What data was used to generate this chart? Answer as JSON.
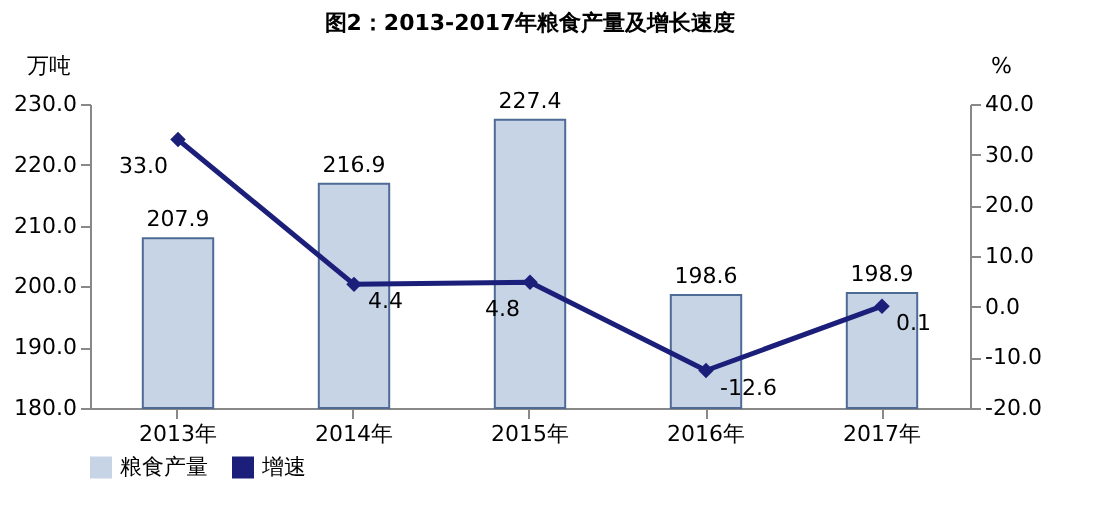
{
  "chart_data": {
    "type": "bar",
    "title": "图2：2013-2017年粮食产量及增长速度",
    "ylabel": "万吨",
    "y2label": "%",
    "categories": [
      "2013年",
      "2014年",
      "2015年",
      "2016年",
      "2017年"
    ],
    "series": [
      {
        "name": "粮食产量",
        "color": "#c6d4e6",
        "values": [
          207.9,
          216.9,
          227.4,
          198.6,
          198.9
        ],
        "value_labels": [
          "207.9",
          "216.9",
          "227.4",
          "198.6",
          "198.9"
        ]
      },
      {
        "name": "增速",
        "type": "line",
        "axis": "y2",
        "color": "#1b1f7a",
        "values": [
          33.0,
          4.4,
          4.8,
          -12.6,
          0.1
        ],
        "value_labels": [
          "33.0",
          "4.4",
          "4.8",
          "-12.6",
          "0.1"
        ]
      }
    ],
    "ylim": [
      180,
      230
    ],
    "yticks": [
      {
        "value": 180,
        "label": "180.0"
      },
      {
        "value": 190,
        "label": "190.0"
      },
      {
        "value": 200,
        "label": "200.0"
      },
      {
        "value": 210,
        "label": "210.0"
      },
      {
        "value": 220,
        "label": "220.0"
      },
      {
        "value": 230,
        "label": "230.0"
      }
    ],
    "y2lim": [
      -20,
      40
    ],
    "y2ticks": [
      {
        "value": -20,
        "label": "-20.0"
      },
      {
        "value": -10,
        "label": "-10.0"
      },
      {
        "value": 0,
        "label": "0.0"
      },
      {
        "value": 10,
        "label": "10.0"
      },
      {
        "value": 20,
        "label": "20.0"
      },
      {
        "value": 30,
        "label": "30.0"
      },
      {
        "value": 40,
        "label": "40.0"
      }
    ],
    "marker": "diamond",
    "grid": false,
    "legend": "bottom"
  }
}
